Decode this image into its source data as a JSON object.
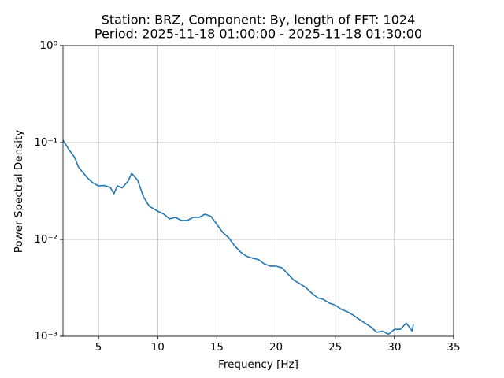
{
  "chart_data": {
    "type": "line",
    "title": "Station: BRZ, Component: By, length of FFT: 1024",
    "subtitle": "Period: 2025-11-18 01:00:00 - 2025-11-18 01:30:00",
    "xlabel": "Frequency [Hz]",
    "ylabel": "Power Spectral Density",
    "x": [
      2.0,
      2.5,
      3.0,
      3.3,
      4.0,
      4.5,
      5.0,
      5.5,
      6.0,
      6.3,
      6.6,
      7.0,
      7.5,
      7.8,
      8.3,
      8.8,
      9.3,
      10.0,
      10.5,
      11.0,
      11.5,
      12.0,
      12.5,
      13.0,
      13.5,
      14.0,
      14.5,
      15.0,
      15.5,
      16.0,
      16.5,
      17.0,
      17.5,
      18.0,
      18.5,
      19.0,
      19.5,
      20.0,
      20.5,
      21.0,
      21.5,
      22.0,
      22.5,
      23.0,
      23.5,
      24.0,
      24.5,
      25.0,
      25.5,
      26.0,
      26.5,
      27.0,
      27.5,
      28.0,
      28.5,
      29.0,
      29.5,
      30.0,
      30.5,
      31.0,
      31.5,
      31.6
    ],
    "series": [
      {
        "name": "PSD",
        "color": "#1f77b4",
        "values": [
          0.106,
          0.0845,
          0.07,
          0.056,
          0.044,
          0.0385,
          0.0357,
          0.036,
          0.0344,
          0.0296,
          0.0357,
          0.034,
          0.04,
          0.048,
          0.041,
          0.0275,
          0.0219,
          0.0196,
          0.0183,
          0.0163,
          0.0169,
          0.0157,
          0.0157,
          0.0169,
          0.0169,
          0.0182,
          0.0173,
          0.0143,
          0.0118,
          0.0104,
          0.0086,
          0.0074,
          0.0067,
          0.0064,
          0.0062,
          0.0056,
          0.0053,
          0.0053,
          0.0051,
          0.0044,
          0.0038,
          0.0035,
          0.0032,
          0.0028,
          0.0025,
          0.0024,
          0.0022,
          0.0021,
          0.0019,
          0.0018,
          0.00166,
          0.0015,
          0.00137,
          0.00125,
          0.0011,
          0.00113,
          0.00105,
          0.00118,
          0.00118,
          0.00137,
          0.00113,
          0.00133
        ]
      }
    ],
    "xlim": [
      2,
      35
    ],
    "xticks": [
      5,
      10,
      15,
      20,
      25,
      30,
      35
    ],
    "ylim": [
      0.001,
      1
    ],
    "ylog": true,
    "yticks": [
      {
        "value": 0.001,
        "label": "10⁻³"
      },
      {
        "value": 0.01,
        "label": "10⁻²"
      },
      {
        "value": 0.1,
        "label": "10⁻¹"
      },
      {
        "value": 1,
        "label": "10⁰"
      }
    ],
    "grid": true
  }
}
